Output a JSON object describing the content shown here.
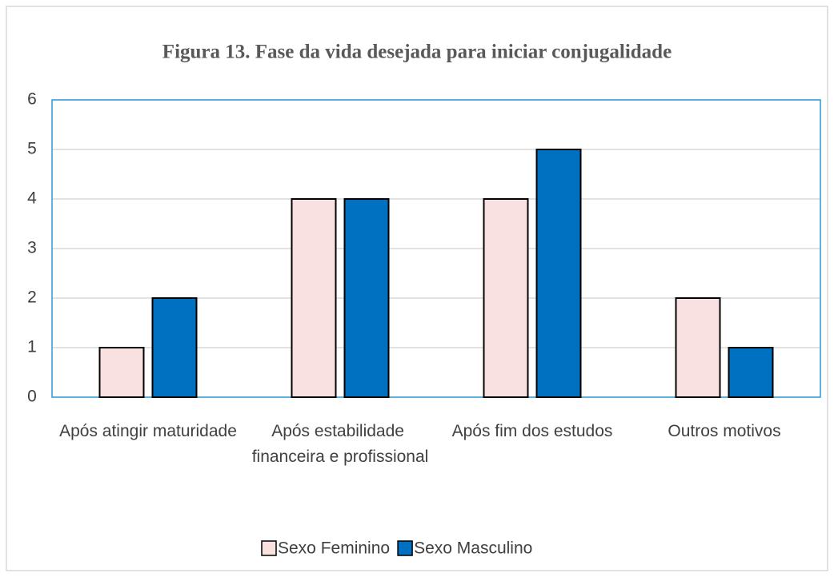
{
  "chart_data": {
    "type": "bar",
    "title": "Figura 13. Fase da vida desejada para iniciar conjugalidade",
    "categories": [
      "Após atingir maturidade",
      "Após estabilidade financeira e profissional",
      "Após fim dos estudos",
      "Outros motivos"
    ],
    "series": [
      {
        "name": "Sexo Feminino",
        "color": "#f8e1e0",
        "values": [
          1,
          4,
          4,
          2
        ]
      },
      {
        "name": "Sexo Masculino",
        "color": "#0070c0",
        "values": [
          2,
          4,
          5,
          1
        ]
      }
    ],
    "ylim": [
      0,
      6
    ],
    "yticks": [
      0,
      1,
      2,
      3,
      4,
      5,
      6
    ],
    "grid": true,
    "legend": "bottom"
  }
}
